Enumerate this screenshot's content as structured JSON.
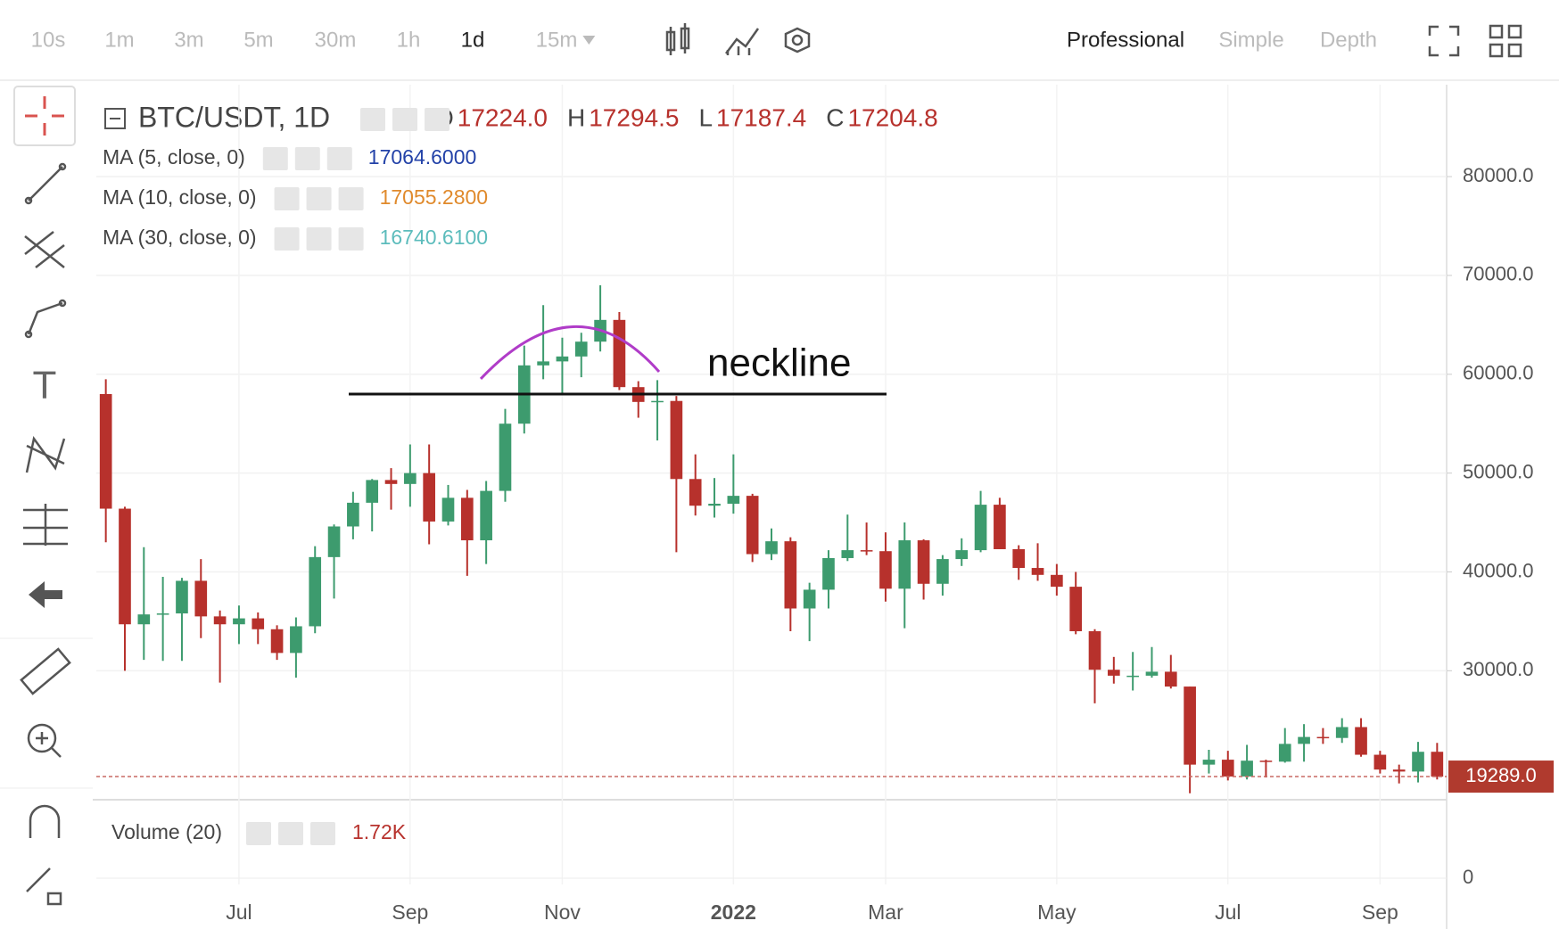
{
  "toolbar": {
    "intervals": [
      "10s",
      "1m",
      "3m",
      "5m",
      "30m",
      "1h",
      "1d",
      "15m"
    ],
    "active": "1d",
    "modes": [
      "Professional",
      "Simple",
      "Depth"
    ],
    "active_mode": "Professional"
  },
  "chart_data": {
    "type": "candlestick",
    "symbol": "BTC/USDT, 1D",
    "ohlc_legend": {
      "labels": [
        "O",
        "H",
        "L",
        "C"
      ],
      "values": [
        "17224.0",
        "17294.5",
        "17187.4",
        "17204.8"
      ]
    },
    "indicators": [
      {
        "name": "MA (5, close, 0)",
        "value": "17064.6000",
        "color": "#2342a8"
      },
      {
        "name": "MA (10, close, 0)",
        "value": "17055.2800",
        "color": "#e08a2c"
      },
      {
        "name": "MA (30, close, 0)",
        "value": "16740.6100",
        "color": "#5cbcbc"
      }
    ],
    "categories": [
      null,
      null,
      null,
      null,
      null,
      null,
      null,
      "Jul",
      null,
      null,
      null,
      null,
      null,
      null,
      null,
      null,
      "Sep",
      null,
      null,
      null,
      null,
      null,
      null,
      null,
      "Nov",
      null,
      null,
      null,
      null,
      null,
      null,
      null,
      null,
      "2022",
      null,
      null,
      null,
      null,
      null,
      null,
      null,
      "Mar",
      null,
      null,
      null,
      null,
      null,
      null,
      null,
      null,
      "May",
      null,
      null,
      null,
      null,
      null,
      null,
      null,
      null,
      "Jul",
      null,
      null,
      null,
      null,
      null,
      null,
      null,
      "Sep",
      null,
      null,
      null
    ],
    "open": [
      58000,
      46400,
      34700,
      35700,
      35800,
      39100,
      35500,
      34700,
      35300,
      34200,
      31800,
      34500,
      41500,
      44600,
      47000,
      49300,
      48900,
      50000,
      45100,
      47500,
      43200,
      48200,
      55000,
      60900,
      61300,
      61800,
      63300,
      65500,
      58700,
      57200,
      57300,
      49400,
      46700,
      46900,
      47700,
      41800,
      43100,
      36300,
      38200,
      41400,
      42200,
      42100,
      38300,
      43200,
      38800,
      41300,
      42200,
      46800,
      42300,
      40400,
      39700,
      38500,
      34000,
      30100,
      29500,
      29500,
      29900,
      28400,
      20500,
      21000,
      19300,
      20900,
      20800,
      22600,
      23300,
      23200,
      24300,
      21500,
      20000,
      19800,
      21800
    ],
    "high": [
      59500,
      46600,
      42500,
      39500,
      39400,
      41300,
      36100,
      36600,
      35900,
      34600,
      35400,
      42600,
      44800,
      48100,
      49400,
      50500,
      52900,
      52900,
      48800,
      48300,
      49200,
      56500,
      62900,
      67000,
      63700,
      64200,
      69000,
      66300,
      59300,
      59400,
      57800,
      51900,
      49500,
      51900,
      47900,
      44400,
      43500,
      38900,
      42200,
      45800,
      45000,
      44000,
      45000,
      43300,
      41700,
      43400,
      48200,
      47500,
      42700,
      42900,
      40800,
      40000,
      34200,
      31400,
      31900,
      32400,
      31600,
      28400,
      22000,
      21900,
      22500,
      21000,
      24200,
      24600,
      24200,
      25200,
      25200,
      21900,
      20500,
      22800,
      22700
    ],
    "low": [
      43000,
      30000,
      31100,
      31000,
      31000,
      33300,
      28800,
      32700,
      32700,
      31100,
      29300,
      33800,
      37300,
      43300,
      44100,
      46300,
      46600,
      42800,
      44700,
      39600,
      40800,
      47100,
      54000,
      59500,
      58000,
      59700,
      62300,
      58400,
      55600,
      53300,
      42000,
      45700,
      45500,
      45900,
      41000,
      41200,
      34000,
      33000,
      36300,
      41100,
      41700,
      37000,
      34300,
      37200,
      37600,
      40600,
      42000,
      42300,
      39200,
      39100,
      37600,
      33700,
      26700,
      28700,
      28000,
      29300,
      28200,
      17600,
      19600,
      18900,
      19000,
      19200,
      20700,
      20800,
      22600,
      22700,
      21300,
      19600,
      18600,
      18700,
      19000
    ],
    "close": [
      46400,
      34700,
      35700,
      35800,
      39100,
      35500,
      34700,
      35300,
      34200,
      31800,
      34500,
      41500,
      44600,
      47000,
      49300,
      48900,
      50000,
      45100,
      47500,
      43200,
      48200,
      55000,
      60900,
      61300,
      61800,
      63300,
      65500,
      58700,
      57200,
      57300,
      49400,
      46700,
      46900,
      47700,
      41800,
      43100,
      36300,
      38200,
      41400,
      42200,
      42100,
      38300,
      43200,
      38800,
      41300,
      42200,
      46800,
      42300,
      40400,
      39700,
      38500,
      34000,
      30100,
      29500,
      29500,
      29900,
      28400,
      20500,
      21000,
      19300,
      20900,
      20800,
      22600,
      23300,
      23200,
      24300,
      21500,
      20000,
      19800,
      21800,
      19289
    ],
    "up_color": "#3d9b6e",
    "down_color": "#b7312c",
    "ylim": [
      17400,
      89300
    ],
    "yticks": [
      {
        "value": 30000,
        "label": "30000.0"
      },
      {
        "value": 40000,
        "label": "40000.0"
      },
      {
        "value": 50000,
        "label": "50000.0"
      },
      {
        "value": 60000,
        "label": "60000.0"
      },
      {
        "value": 70000,
        "label": "70000.0"
      },
      {
        "value": 80000,
        "label": "80000.0"
      }
    ],
    "grid": true,
    "last_price_label": "19289.0",
    "annotation": {
      "text": "neckline",
      "value": 58000
    },
    "volume_panel": {
      "title": "Volume (20)",
      "value_label": "1.72K",
      "ylim": [
        0,
        20000
      ],
      "yticks": [
        0
      ]
    }
  }
}
